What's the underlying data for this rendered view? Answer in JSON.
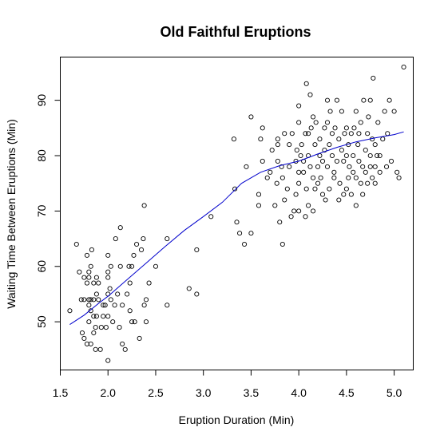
{
  "chart_data": {
    "type": "scatter",
    "title": "Old Faithful Eruptions",
    "xlabel": "Eruption Duration (Min)",
    "ylabel": "Waiting Time Between Eruptions (Min)",
    "xlim": [
      1.5,
      5.2
    ],
    "ylim": [
      41.3,
      97.8
    ],
    "x_ticks": [
      "1.5",
      "2.0",
      "2.5",
      "3.0",
      "3.5",
      "4.0",
      "4.5",
      "5.0"
    ],
    "y_ticks": [
      "50",
      "60",
      "70",
      "80",
      "90"
    ],
    "point_color": "#000000",
    "fit_color": "#0000cc",
    "grid": false,
    "legend": "none",
    "series": [
      {
        "kind": "points",
        "points": [
          [
            1.6,
            52
          ],
          [
            1.67,
            64
          ],
          [
            1.7,
            59
          ],
          [
            1.72,
            54
          ],
          [
            1.73,
            48
          ],
          [
            1.75,
            47
          ],
          [
            1.75,
            54
          ],
          [
            1.75,
            58
          ],
          [
            1.78,
            46
          ],
          [
            1.78,
            57
          ],
          [
            1.78,
            62
          ],
          [
            1.8,
            50
          ],
          [
            1.8,
            53
          ],
          [
            1.8,
            54
          ],
          [
            1.8,
            58
          ],
          [
            1.8,
            59
          ],
          [
            1.82,
            46
          ],
          [
            1.82,
            52
          ],
          [
            1.82,
            54
          ],
          [
            1.82,
            60
          ],
          [
            1.83,
            63
          ],
          [
            1.85,
            48
          ],
          [
            1.85,
            51
          ],
          [
            1.85,
            54
          ],
          [
            1.85,
            57
          ],
          [
            1.87,
            45
          ],
          [
            1.87,
            49
          ],
          [
            1.88,
            51
          ],
          [
            1.88,
            55
          ],
          [
            1.88,
            58
          ],
          [
            1.9,
            54
          ],
          [
            1.9,
            57
          ],
          [
            1.92,
            45
          ],
          [
            1.93,
            49
          ],
          [
            1.95,
            51
          ],
          [
            1.95,
            53
          ],
          [
            1.97,
            53
          ],
          [
            1.98,
            49
          ],
          [
            2.0,
            43
          ],
          [
            2.0,
            51
          ],
          [
            2.0,
            55
          ],
          [
            2.0,
            58
          ],
          [
            2.0,
            59
          ],
          [
            2.0,
            62
          ],
          [
            2.02,
            56
          ],
          [
            2.03,
            54
          ],
          [
            2.03,
            60
          ],
          [
            2.05,
            50
          ],
          [
            2.07,
            53
          ],
          [
            2.08,
            65
          ],
          [
            2.1,
            55
          ],
          [
            2.12,
            49
          ],
          [
            2.13,
            60
          ],
          [
            2.13,
            67
          ],
          [
            2.15,
            53
          ],
          [
            2.15,
            46
          ],
          [
            2.18,
            45
          ],
          [
            2.2,
            55
          ],
          [
            2.22,
            60
          ],
          [
            2.23,
            52
          ],
          [
            2.23,
            57
          ],
          [
            2.25,
            50
          ],
          [
            2.25,
            60
          ],
          [
            2.27,
            62
          ],
          [
            2.28,
            50
          ],
          [
            2.3,
            64
          ],
          [
            2.33,
            47
          ],
          [
            2.35,
            63
          ],
          [
            2.37,
            65
          ],
          [
            2.38,
            71
          ],
          [
            2.38,
            53
          ],
          [
            2.4,
            50
          ],
          [
            2.4,
            54
          ],
          [
            2.43,
            57
          ],
          [
            2.5,
            60
          ],
          [
            2.62,
            65
          ],
          [
            2.62,
            53
          ],
          [
            2.85,
            56
          ],
          [
            2.93,
            55
          ],
          [
            2.93,
            63
          ],
          [
            3.08,
            69
          ],
          [
            3.32,
            83
          ],
          [
            3.33,
            74
          ],
          [
            3.35,
            68
          ],
          [
            3.38,
            66
          ],
          [
            3.43,
            64
          ],
          [
            3.45,
            78
          ],
          [
            3.5,
            66
          ],
          [
            3.5,
            87
          ],
          [
            3.58,
            71
          ],
          [
            3.58,
            73
          ],
          [
            3.6,
            83
          ],
          [
            3.62,
            79
          ],
          [
            3.62,
            85
          ],
          [
            3.67,
            76
          ],
          [
            3.7,
            77
          ],
          [
            3.72,
            81
          ],
          [
            3.75,
            71
          ],
          [
            3.77,
            75
          ],
          [
            3.78,
            79
          ],
          [
            3.78,
            82
          ],
          [
            3.78,
            83
          ],
          [
            3.8,
            68
          ],
          [
            3.82,
            78
          ],
          [
            3.83,
            64
          ],
          [
            3.83,
            76
          ],
          [
            3.85,
            84
          ],
          [
            3.85,
            72
          ],
          [
            3.88,
            74
          ],
          [
            3.9,
            78
          ],
          [
            3.9,
            82
          ],
          [
            3.92,
            69
          ],
          [
            3.93,
            84
          ],
          [
            3.95,
            70
          ],
          [
            3.97,
            73
          ],
          [
            3.97,
            79
          ],
          [
            3.98,
            81
          ],
          [
            4.0,
            77
          ],
          [
            4.0,
            75
          ],
          [
            4.0,
            86
          ],
          [
            4.0,
            89
          ],
          [
            4.0,
            70
          ],
          [
            4.02,
            80
          ],
          [
            4.03,
            82
          ],
          [
            4.05,
            77
          ],
          [
            4.05,
            79
          ],
          [
            4.07,
            69
          ],
          [
            4.07,
            84
          ],
          [
            4.08,
            74
          ],
          [
            4.08,
            93
          ],
          [
            4.1,
            71
          ],
          [
            4.1,
            80
          ],
          [
            4.1,
            84
          ],
          [
            4.12,
            78
          ],
          [
            4.12,
            91
          ],
          [
            4.13,
            85
          ],
          [
            4.15,
            70
          ],
          [
            4.15,
            76
          ],
          [
            4.15,
            87
          ],
          [
            4.17,
            74
          ],
          [
            4.17,
            82
          ],
          [
            4.18,
            86
          ],
          [
            4.2,
            75
          ],
          [
            4.2,
            78
          ],
          [
            4.22,
            80
          ],
          [
            4.22,
            83
          ],
          [
            4.23,
            76
          ],
          [
            4.25,
            73
          ],
          [
            4.25,
            79
          ],
          [
            4.27,
            81
          ],
          [
            4.27,
            85
          ],
          [
            4.28,
            72
          ],
          [
            4.3,
            78
          ],
          [
            4.3,
            86
          ],
          [
            4.3,
            90
          ],
          [
            4.32,
            74
          ],
          [
            4.32,
            82
          ],
          [
            4.33,
            88
          ],
          [
            4.35,
            80
          ],
          [
            4.35,
            84
          ],
          [
            4.37,
            76
          ],
          [
            4.37,
            77
          ],
          [
            4.38,
            85
          ],
          [
            4.4,
            90
          ],
          [
            4.4,
            79
          ],
          [
            4.42,
            72
          ],
          [
            4.42,
            83
          ],
          [
            4.43,
            75
          ],
          [
            4.45,
            81
          ],
          [
            4.45,
            88
          ],
          [
            4.47,
            73
          ],
          [
            4.47,
            79
          ],
          [
            4.48,
            84
          ],
          [
            4.5,
            74
          ],
          [
            4.5,
            80
          ],
          [
            4.5,
            85
          ],
          [
            4.52,
            76
          ],
          [
            4.52,
            82
          ],
          [
            4.53,
            78
          ],
          [
            4.55,
            73
          ],
          [
            4.55,
            84
          ],
          [
            4.57,
            77
          ],
          [
            4.57,
            80
          ],
          [
            4.58,
            85
          ],
          [
            4.6,
            71
          ],
          [
            4.6,
            76
          ],
          [
            4.6,
            88
          ],
          [
            4.62,
            82
          ],
          [
            4.63,
            79
          ],
          [
            4.63,
            84
          ],
          [
            4.65,
            75
          ],
          [
            4.65,
            86
          ],
          [
            4.67,
            73
          ],
          [
            4.67,
            78
          ],
          [
            4.68,
            90
          ],
          [
            4.7,
            77
          ],
          [
            4.7,
            81
          ],
          [
            4.72,
            75
          ],
          [
            4.72,
            84
          ],
          [
            4.73,
            87
          ],
          [
            4.75,
            78
          ],
          [
            4.75,
            80
          ],
          [
            4.75,
            90
          ],
          [
            4.77,
            76
          ],
          [
            4.77,
            83
          ],
          [
            4.78,
            94
          ],
          [
            4.8,
            75
          ],
          [
            4.8,
            78
          ],
          [
            4.8,
            82
          ],
          [
            4.82,
            80
          ],
          [
            4.83,
            86
          ],
          [
            4.85,
            77
          ],
          [
            4.85,
            80
          ],
          [
            4.88,
            83
          ],
          [
            4.9,
            88
          ],
          [
            4.92,
            78
          ],
          [
            4.93,
            84
          ],
          [
            4.95,
            90
          ],
          [
            4.97,
            79
          ],
          [
            5.0,
            88
          ],
          [
            5.03,
            77
          ],
          [
            5.05,
            76
          ],
          [
            5.1,
            96
          ]
        ]
      },
      {
        "kind": "smoothed-line",
        "points": [
          [
            1.6,
            49.5
          ],
          [
            1.75,
            51.2
          ],
          [
            1.9,
            53.3
          ],
          [
            2.0,
            54.6
          ],
          [
            2.2,
            57.6
          ],
          [
            2.4,
            60.6
          ],
          [
            2.6,
            63.6
          ],
          [
            2.8,
            66.5
          ],
          [
            3.0,
            69.0
          ],
          [
            3.2,
            71.6
          ],
          [
            3.4,
            75.0
          ],
          [
            3.6,
            77.0
          ],
          [
            3.8,
            78.2
          ],
          [
            4.0,
            79.0
          ],
          [
            4.2,
            80.3
          ],
          [
            4.4,
            81.5
          ],
          [
            4.6,
            82.5
          ],
          [
            4.8,
            83.2
          ],
          [
            5.0,
            83.8
          ],
          [
            5.1,
            84.3
          ]
        ]
      }
    ]
  }
}
